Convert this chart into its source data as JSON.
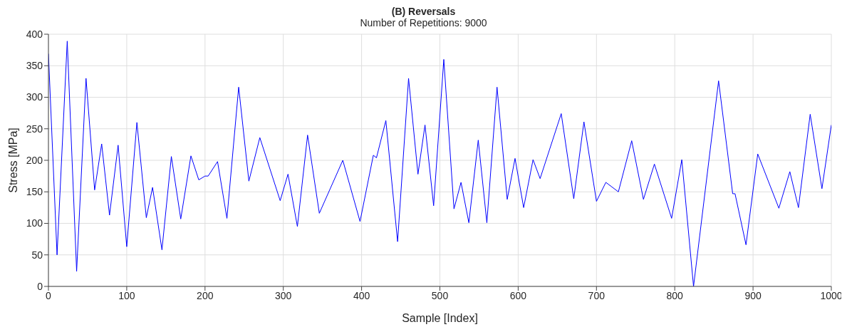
{
  "chart_data": {
    "type": "line",
    "title": "(B) Reversals",
    "subtitle": "Number of Repetitions: 9000",
    "xlabel": "Sample [Index]",
    "ylabel": "Stress [MPa]",
    "series": [
      {
        "color": "#0000ff",
        "x": [
          0,
          11,
          24,
          36,
          48,
          59,
          68,
          78,
          89,
          100,
          113,
          125,
          133,
          145,
          157,
          169,
          182,
          192,
          200,
          204,
          216,
          228,
          243,
          256,
          270,
          296,
          306,
          318,
          331,
          346,
          376,
          398,
          415,
          419,
          431,
          446,
          460,
          472,
          481,
          492,
          505,
          518,
          527,
          537,
          549,
          560,
          573,
          586,
          596,
          607,
          619,
          628,
          655,
          671,
          684,
          700,
          712,
          728,
          745,
          760,
          774,
          796,
          809,
          824,
          856,
          874,
          877,
          891,
          906,
          933,
          947,
          958,
          973,
          988,
          1000
        ],
        "values": [
          369,
          50,
          389,
          24,
          330,
          153,
          226,
          113,
          224,
          63,
          260,
          109,
          157,
          58,
          206,
          107,
          207,
          169,
          175,
          175,
          198,
          108,
          316,
          167,
          236,
          136,
          178,
          95,
          240,
          116,
          200,
          103,
          208,
          204,
          263,
          71,
          330,
          178,
          256,
          128,
          360,
          123,
          165,
          101,
          232,
          101,
          316,
          138,
          203,
          125,
          201,
          171,
          274,
          139,
          261,
          135,
          165,
          150,
          231,
          138,
          194,
          108,
          201,
          0,
          326,
          147,
          147,
          66,
          210,
          124,
          182,
          125,
          273,
          155,
          256
        ]
      }
    ],
    "xlim": [
      0,
      1000
    ],
    "xticks": [
      0,
      100,
      200,
      300,
      400,
      500,
      600,
      700,
      800,
      900,
      1000
    ],
    "ylim": [
      0,
      400
    ],
    "yticks": [
      0,
      50,
      100,
      150,
      200,
      250,
      300,
      350,
      400
    ],
    "grid": true,
    "marker": "none",
    "line_style": "solid"
  }
}
